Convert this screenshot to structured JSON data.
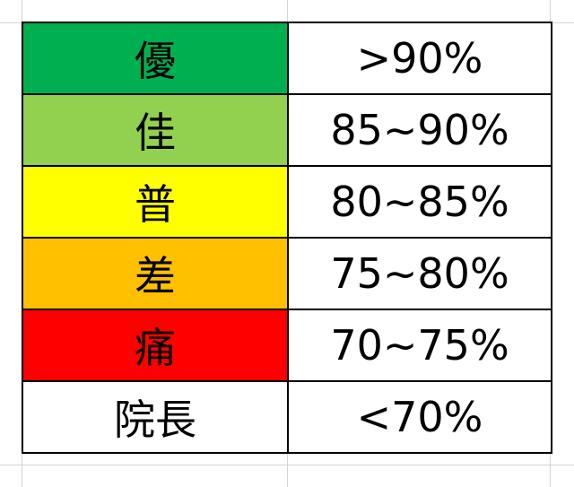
{
  "legend": {
    "rows": [
      {
        "grade": "優",
        "range": ">90%",
        "color": "#00B050"
      },
      {
        "grade": "佳",
        "range": "85~90%",
        "color": "#92D050"
      },
      {
        "grade": "普",
        "range": "80~85%",
        "color": "#FFFF00"
      },
      {
        "grade": "差",
        "range": "75~80%",
        "color": "#FFC000"
      },
      {
        "grade": "痛",
        "range": "70~75%",
        "color": "#FF0000"
      },
      {
        "grade": "院長",
        "range": "<70%",
        "color": "#FFFFFF"
      }
    ]
  }
}
